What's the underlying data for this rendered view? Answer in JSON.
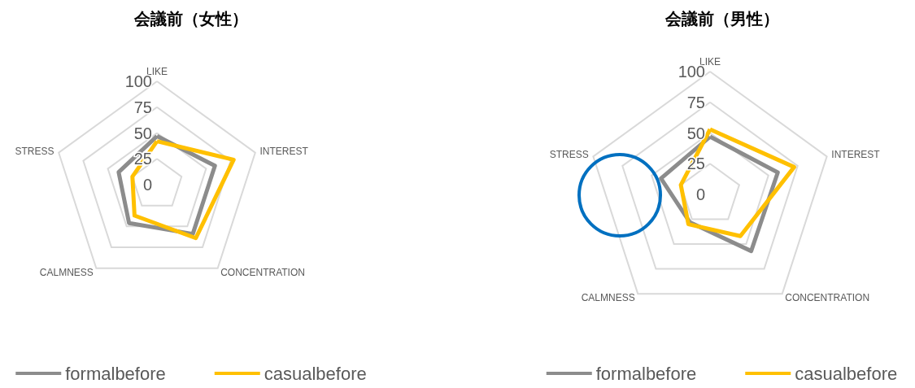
{
  "chart_data": [
    {
      "type": "radar",
      "title": "会議前（女性）",
      "categories": [
        "LIKE",
        "INTEREST",
        "CONCENTRATION",
        "CALMNESS",
        "STRESS"
      ],
      "ylim": [
        0,
        100
      ],
      "yticks": [
        0,
        25,
        50,
        75,
        100
      ],
      "grid": true,
      "legend": "bottom",
      "marker": "none",
      "series": [
        {
          "name": "formalbefore",
          "color": "#8c8c8c",
          "values": [
            47,
            59,
            59,
            46,
            39
          ]
        },
        {
          "name": "casualbefore",
          "color": "#ffc000",
          "values": [
            42,
            78,
            64,
            37,
            25
          ]
        }
      ]
    },
    {
      "type": "radar",
      "title": "会議前（男性）",
      "categories": [
        "LIKE",
        "INTEREST",
        "CONCENTRATION",
        "CALMNESS",
        "STRESS"
      ],
      "ylim": [
        0,
        100
      ],
      "yticks": [
        0,
        25,
        50,
        75,
        100
      ],
      "grid": true,
      "legend": "bottom",
      "marker": "none",
      "series": [
        {
          "name": "formalbefore",
          "color": "#8c8c8c",
          "values": [
            47,
            58,
            57,
            28,
            42
          ]
        },
        {
          "name": "casualbefore",
          "color": "#ffc000",
          "values": [
            53,
            72,
            42,
            30,
            25
          ]
        }
      ]
    }
  ]
}
